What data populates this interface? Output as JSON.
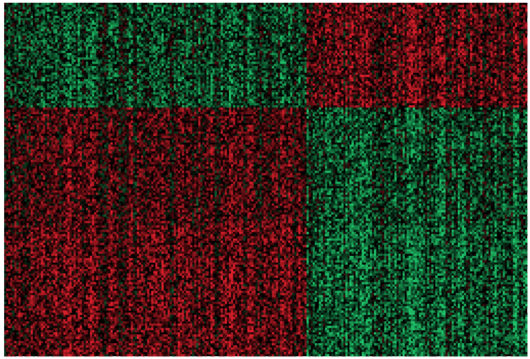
{
  "chart_data": {
    "type": "heatmap",
    "title": "",
    "xlabel": "",
    "ylabel": "",
    "grid": false,
    "legend": "none",
    "colormap": {
      "low": "#1fc46a",
      "mid": "#000000",
      "high": "#e0202c"
    },
    "value_range": [
      -1,
      1
    ],
    "column_groups": [
      {
        "count": 148
      },
      {
        "count": 108
      }
    ],
    "row_clusters": [
      {
        "rows": 48,
        "group_means": [
          -0.28,
          0.32
        ]
      },
      {
        "rows": 54,
        "group_means": [
          0.24,
          -0.3
        ]
      },
      {
        "rows": 60,
        "group_means": [
          0.34,
          -0.38
        ]
      }
    ],
    "cell_noise": 0.55
  }
}
